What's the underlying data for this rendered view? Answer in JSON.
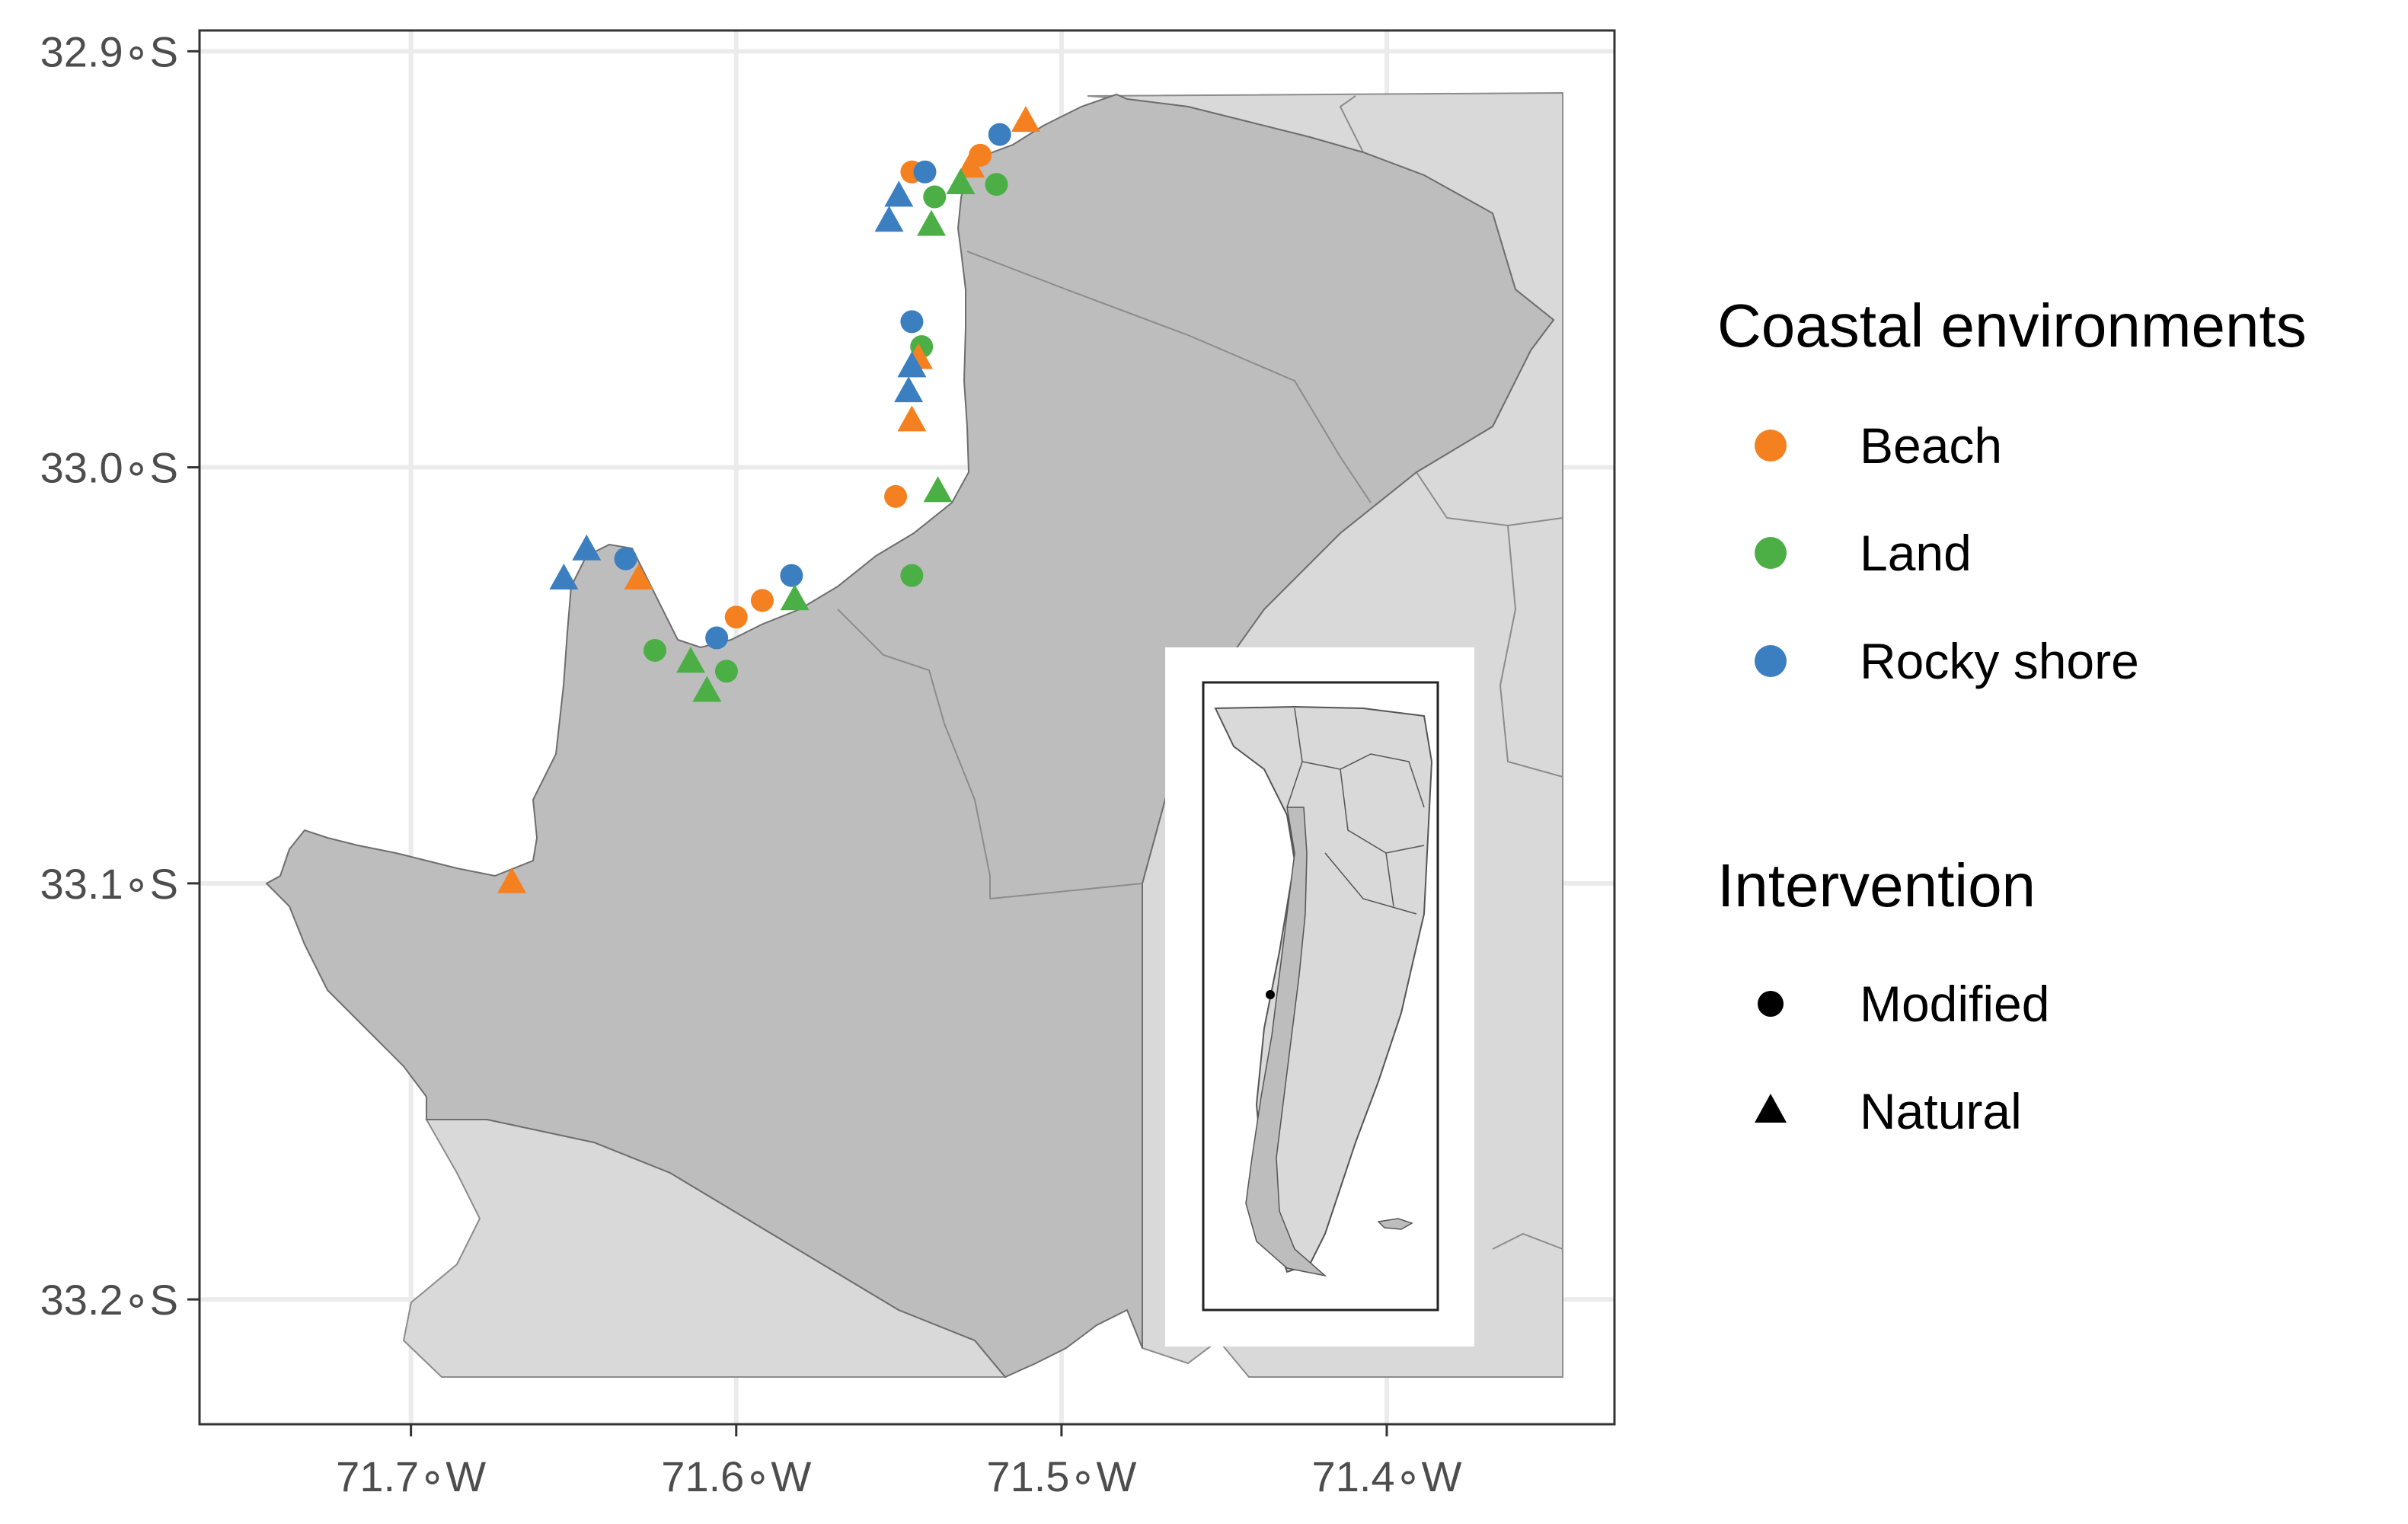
{
  "map": {
    "x_ticks": [
      {
        "value": -71.7,
        "label": "71.7∘W"
      },
      {
        "value": -71.6,
        "label": "71.6∘W"
      },
      {
        "value": -71.5,
        "label": "71.5∘W"
      },
      {
        "value": -71.4,
        "label": "71.4∘W"
      }
    ],
    "y_ticks": [
      {
        "value": -32.9,
        "label": "32.9∘S"
      },
      {
        "value": -33.0,
        "label": "33.0∘S"
      },
      {
        "value": -33.1,
        "label": "33.1∘S"
      },
      {
        "value": -33.2,
        "label": "33.2∘S"
      }
    ],
    "lon_range": [
      -71.765,
      -71.33
    ],
    "lat_range": [
      -32.895,
      -33.23
    ],
    "colors": {
      "land_study": "#bdbdbd",
      "land_other": "#d9d9d9",
      "grid": "#ebebeb",
      "beach": "#f5801f",
      "land": "#4caf46",
      "rocky_shore": "#3b7fc1"
    }
  },
  "legend": {
    "environments_title": "Coastal environments",
    "environments": [
      {
        "label": "Beach",
        "color": "#f5801f"
      },
      {
        "label": "Land",
        "color": "#4caf46"
      },
      {
        "label": "Rocky shore",
        "color": "#3b7fc1"
      }
    ],
    "intervention_title": "Intervention",
    "interventions": [
      {
        "label": "Modified",
        "shape": "circle"
      },
      {
        "label": "Natural",
        "shape": "triangle"
      }
    ]
  },
  "sites": [
    {
      "lon": -71.511,
      "lat": -32.917,
      "env": "beach",
      "type": "natural"
    },
    {
      "lon": -71.519,
      "lat": -32.92,
      "env": "rocky_shore",
      "type": "modified"
    },
    {
      "lon": -71.525,
      "lat": -32.925,
      "env": "beach",
      "type": "modified"
    },
    {
      "lon": -71.528,
      "lat": -32.928,
      "env": "beach",
      "type": "natural"
    },
    {
      "lon": -71.546,
      "lat": -32.929,
      "env": "beach",
      "type": "modified"
    },
    {
      "lon": -71.542,
      "lat": -32.929,
      "env": "rocky_shore",
      "type": "modified"
    },
    {
      "lon": -71.52,
      "lat": -32.932,
      "env": "land",
      "type": "modified"
    },
    {
      "lon": -71.531,
      "lat": -32.932,
      "env": "land",
      "type": "natural"
    },
    {
      "lon": -71.539,
      "lat": -32.935,
      "env": "land",
      "type": "modified"
    },
    {
      "lon": -71.55,
      "lat": -32.935,
      "env": "rocky_shore",
      "type": "natural"
    },
    {
      "lon": -71.553,
      "lat": -32.941,
      "env": "rocky_shore",
      "type": "natural"
    },
    {
      "lon": -71.54,
      "lat": -32.942,
      "env": "land",
      "type": "natural"
    },
    {
      "lon": -71.546,
      "lat": -32.965,
      "env": "rocky_shore",
      "type": "modified"
    },
    {
      "lon": -71.543,
      "lat": -32.971,
      "env": "land",
      "type": "modified"
    },
    {
      "lon": -71.544,
      "lat": -32.974,
      "env": "beach",
      "type": "natural"
    },
    {
      "lon": -71.546,
      "lat": -32.976,
      "env": "rocky_shore",
      "type": "natural"
    },
    {
      "lon": -71.547,
      "lat": -32.982,
      "env": "rocky_shore",
      "type": "natural"
    },
    {
      "lon": -71.546,
      "lat": -32.989,
      "env": "beach",
      "type": "natural"
    },
    {
      "lon": -71.538,
      "lat": -33.006,
      "env": "land",
      "type": "natural"
    },
    {
      "lon": -71.551,
      "lat": -33.007,
      "env": "beach",
      "type": "modified"
    },
    {
      "lon": -71.646,
      "lat": -33.02,
      "env": "rocky_shore",
      "type": "natural"
    },
    {
      "lon": -71.634,
      "lat": -33.022,
      "env": "rocky_shore",
      "type": "modified"
    },
    {
      "lon": -71.653,
      "lat": -33.027,
      "env": "rocky_shore",
      "type": "natural"
    },
    {
      "lon": -71.63,
      "lat": -33.027,
      "env": "beach",
      "type": "natural"
    },
    {
      "lon": -71.583,
      "lat": -33.026,
      "env": "rocky_shore",
      "type": "modified"
    },
    {
      "lon": -71.546,
      "lat": -33.026,
      "env": "land",
      "type": "modified"
    },
    {
      "lon": -71.582,
      "lat": -33.032,
      "env": "land",
      "type": "natural"
    },
    {
      "lon": -71.592,
      "lat": -33.032,
      "env": "beach",
      "type": "modified"
    },
    {
      "lon": -71.6,
      "lat": -33.036,
      "env": "beach",
      "type": "modified"
    },
    {
      "lon": -71.606,
      "lat": -33.041,
      "env": "rocky_shore",
      "type": "modified"
    },
    {
      "lon": -71.625,
      "lat": -33.044,
      "env": "land",
      "type": "modified"
    },
    {
      "lon": -71.614,
      "lat": -33.047,
      "env": "land",
      "type": "natural"
    },
    {
      "lon": -71.603,
      "lat": -33.049,
      "env": "land",
      "type": "modified"
    },
    {
      "lon": -71.609,
      "lat": -33.054,
      "env": "land",
      "type": "natural"
    },
    {
      "lon": -71.669,
      "lat": -33.1,
      "env": "beach",
      "type": "natural"
    }
  ],
  "inset_location": {
    "lon": -71.6,
    "lat": -33.0
  }
}
